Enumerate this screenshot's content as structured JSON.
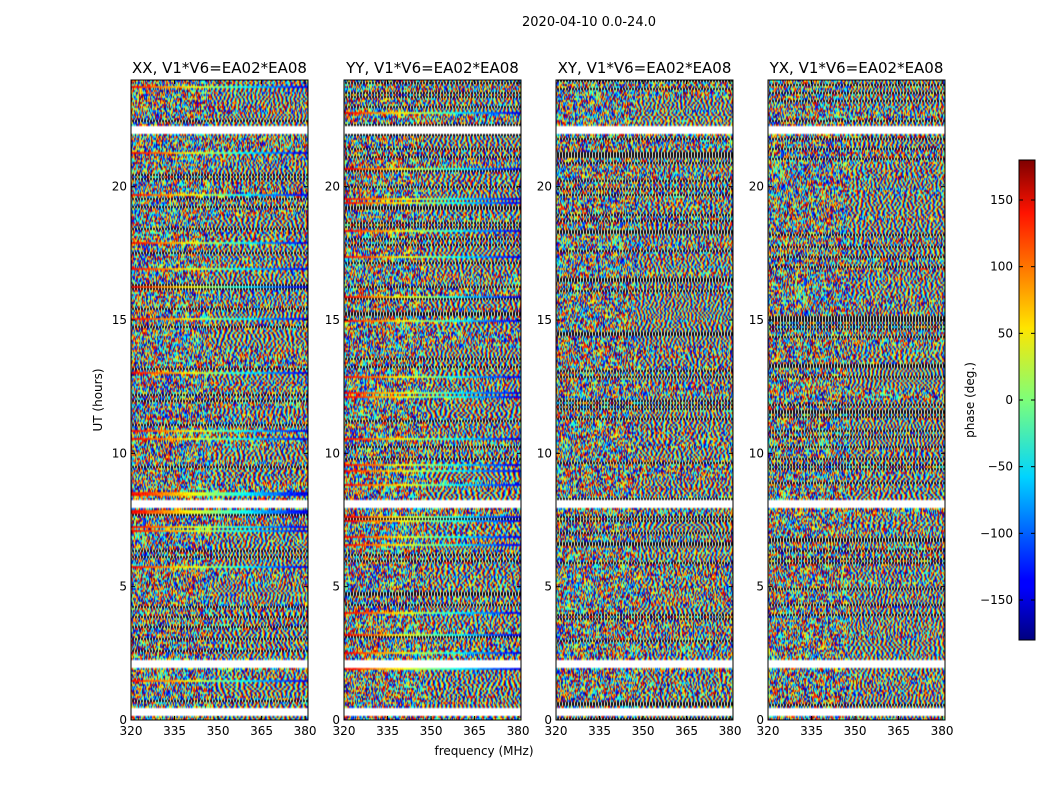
{
  "chart_data": {
    "type": "heatmap",
    "suptitle": "2020-04-10 0.0-24.0",
    "xlabel": "frequency (MHz)",
    "ylabel": "UT (hours)",
    "xlim": [
      320,
      381
    ],
    "ylim": [
      0,
      24
    ],
    "xticks": [
      "320",
      "335",
      "350",
      "365",
      "380"
    ],
    "yticks": [
      "0",
      "5",
      "10",
      "15",
      "20"
    ],
    "panels": [
      {
        "title": "XX, V1*V6=EA02*EA08"
      },
      {
        "title": "YY, V1*V6=EA02*EA08"
      },
      {
        "title": "XY, V1*V6=EA02*EA08"
      },
      {
        "title": "YX, V1*V6=EA02*EA08"
      }
    ],
    "colorbar": {
      "label": "phase (deg.)",
      "range": [
        -180,
        180
      ],
      "ticks": [
        "150",
        "100",
        "50",
        "0",
        "−50",
        "−100",
        "−150"
      ],
      "colormap": "jet"
    },
    "flagged_gaps_hours": [
      [
        0.2,
        0.5
      ],
      [
        2.0,
        2.3
      ],
      [
        8.0,
        8.3
      ],
      [
        22.0,
        22.3
      ]
    ]
  }
}
